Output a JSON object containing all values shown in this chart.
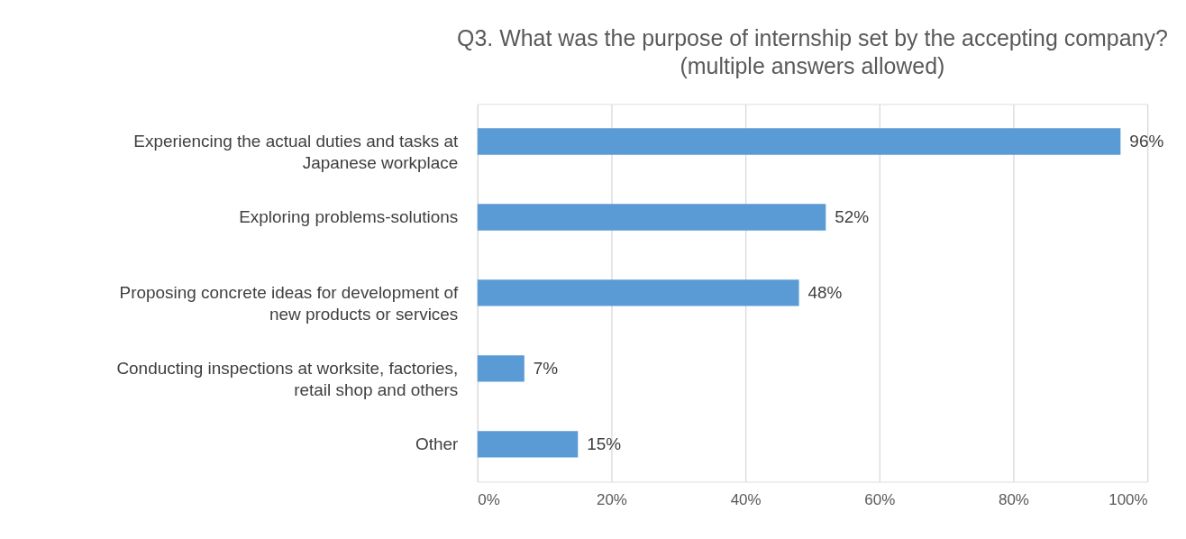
{
  "chart_data": {
    "type": "bar",
    "orientation": "horizontal",
    "title": "Q3. What was the purpose of internship set by the accepting company? (multiple answers allowed)",
    "categories": [
      "Experiencing the actual duties and tasks at Japanese workplace",
      "Exploring problems-solutions",
      "Proposing concrete ideas for development of new products or services",
      "Conducting inspections at worksite, factories, retail shop and others",
      "Other"
    ],
    "values": [
      96,
      52,
      48,
      7,
      15
    ],
    "value_labels": [
      "96%",
      "52%",
      "48%",
      "7%",
      "15%"
    ],
    "color": "#5b9bd5",
    "xlim": [
      0,
      100
    ],
    "xticks": [
      {
        "value": 0,
        "label": "0%"
      },
      {
        "value": 20,
        "label": "20%"
      },
      {
        "value": 40,
        "label": "40%"
      },
      {
        "value": 60,
        "label": "60%"
      },
      {
        "value": 80,
        "label": "80%"
      },
      {
        "value": 100,
        "label": "100%"
      }
    ],
    "grid": "x"
  }
}
